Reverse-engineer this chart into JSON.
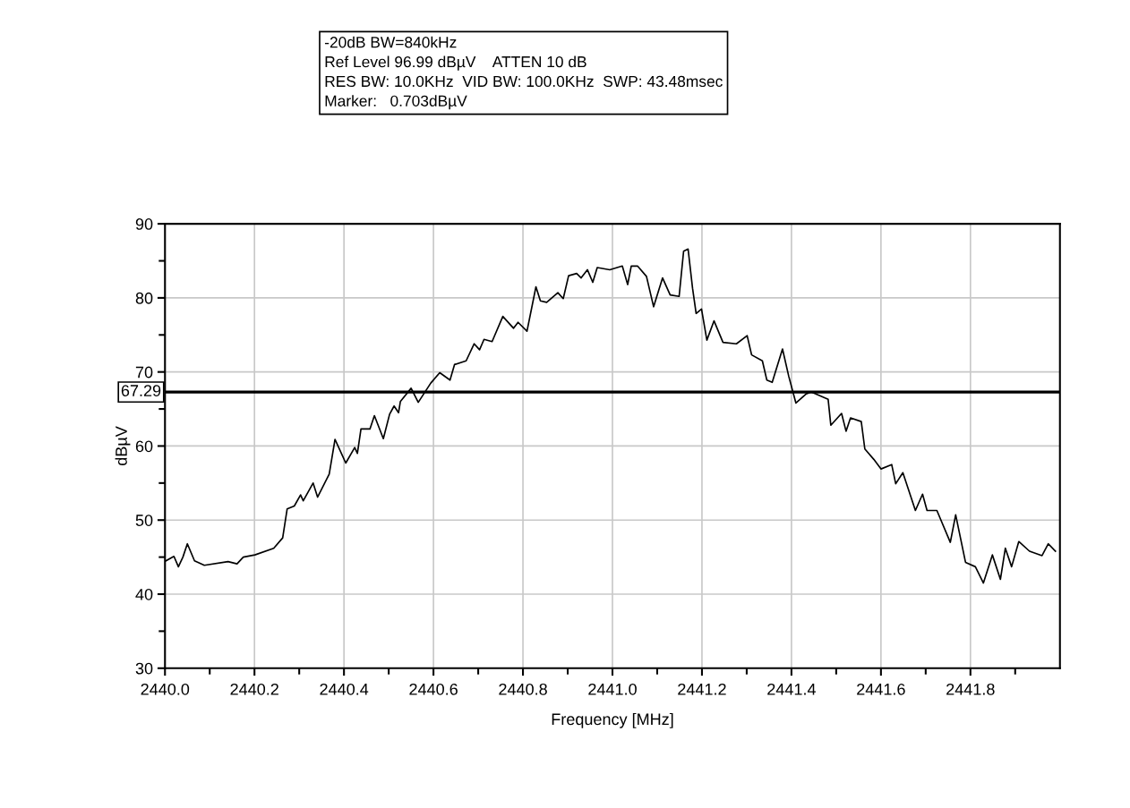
{
  "chart_data": {
    "type": "line",
    "xlabel": "Frequency [MHz]",
    "ylabel": "dBµV",
    "annotations": [
      "-20dB BW=840kHz",
      "Ref Level 96.99 dBµV    ATTEN 10 dB",
      "RES BW: 10.0KHz  VID BW: 100.0KHz  SWP: 43.48msec",
      "Marker:   0.703dBµV"
    ],
    "xlim": [
      2440,
      2442
    ],
    "ylim": [
      30,
      90
    ],
    "xticks": [
      {
        "value": 2440.0,
        "label": "2440.0"
      },
      2440.2,
      2440.4,
      2440.6,
      2440.8,
      {
        "value": 2441.0,
        "label": "2441.0"
      },
      2441.2,
      2441.4,
      2441.6,
      2441.8
    ],
    "yticks": [
      30,
      40,
      50,
      60,
      70,
      80,
      90
    ],
    "grid": true,
    "marker": "none",
    "line_style": "solid",
    "ref_lines": [
      {
        "axis": "y",
        "value": 67.29,
        "label": "67.29",
        "color": "#000000"
      }
    ],
    "series": [
      {
        "color": "#000000",
        "x": [
          2440.002,
          2440.02,
          2440.03,
          2440.04,
          2440.05,
          2440.066,
          2440.088,
          2440.141,
          2440.161,
          2440.175,
          2440.201,
          2440.243,
          2440.263,
          2440.273,
          2440.289,
          2440.303,
          2440.309,
          2440.331,
          2440.341,
          2440.367,
          2440.38,
          2440.404,
          2440.424,
          2440.43,
          2440.438,
          2440.458,
          2440.468,
          2440.488,
          2440.502,
          2440.512,
          2440.522,
          2440.526,
          2440.55,
          2440.566,
          2440.594,
          2440.614,
          2440.637,
          2440.647,
          2440.673,
          2440.691,
          2440.703,
          2440.713,
          2440.731,
          2440.755,
          2440.779,
          2440.789,
          2440.809,
          2440.829,
          2440.839,
          2440.853,
          2440.878,
          2440.89,
          2440.902,
          2440.92,
          2440.93,
          2440.944,
          2440.956,
          2440.966,
          2440.994,
          2441.022,
          2441.034,
          2441.042,
          2441.056,
          2441.076,
          2441.092,
          2441.112,
          2441.129,
          2441.149,
          2441.159,
          2441.169,
          2441.179,
          2441.187,
          2441.199,
          2441.211,
          2441.227,
          2441.247,
          2441.277,
          2441.301,
          2441.311,
          2441.335,
          2441.345,
          2441.357,
          2441.38,
          2441.394,
          2441.41,
          2441.432,
          2441.444,
          2441.482,
          2441.488,
          2441.512,
          2441.522,
          2441.532,
          2441.556,
          2441.564,
          2441.584,
          2441.6,
          2441.624,
          2441.633,
          2441.649,
          2441.677,
          2441.693,
          2441.703,
          2441.725,
          2441.755,
          2441.767,
          2441.789,
          2441.811,
          2441.829,
          2441.849,
          2441.867,
          2441.878,
          2441.892,
          2441.908,
          2441.932,
          2441.96,
          2441.974,
          2441.99
        ],
        "values": [
          44.5,
          45.1,
          43.7,
          45.0,
          46.8,
          44.5,
          43.9,
          44.4,
          44.1,
          45.0,
          45.3,
          46.2,
          47.6,
          51.5,
          51.9,
          53.4,
          52.6,
          55.0,
          53.1,
          56.2,
          60.9,
          57.7,
          59.8,
          59.0,
          62.3,
          62.3,
          64.1,
          61.0,
          64.3,
          65.4,
          64.5,
          66.0,
          67.8,
          65.9,
          68.5,
          69.9,
          68.9,
          71.0,
          71.5,
          73.8,
          73.0,
          74.4,
          74.1,
          77.5,
          75.9,
          76.7,
          75.5,
          81.5,
          79.6,
          79.4,
          80.7,
          79.9,
          83.0,
          83.3,
          82.7,
          83.8,
          82.1,
          84.1,
          83.8,
          84.3,
          81.8,
          84.3,
          84.3,
          82.9,
          78.8,
          82.7,
          80.4,
          80.2,
          86.3,
          86.6,
          81.3,
          77.9,
          78.5,
          74.3,
          76.9,
          74.0,
          73.8,
          74.9,
          72.3,
          71.5,
          68.9,
          68.6,
          73.1,
          69.4,
          65.8,
          67.0,
          67.3,
          66.3,
          62.8,
          64.4,
          62.0,
          63.8,
          63.3,
          59.6,
          58.2,
          56.9,
          57.5,
          54.9,
          56.4,
          51.3,
          53.5,
          51.3,
          51.3,
          47.0,
          50.7,
          44.3,
          43.7,
          41.5,
          45.3,
          42.0,
          46.2,
          43.7,
          47.1,
          45.8,
          45.2,
          46.8,
          45.8
        ]
      }
    ]
  }
}
